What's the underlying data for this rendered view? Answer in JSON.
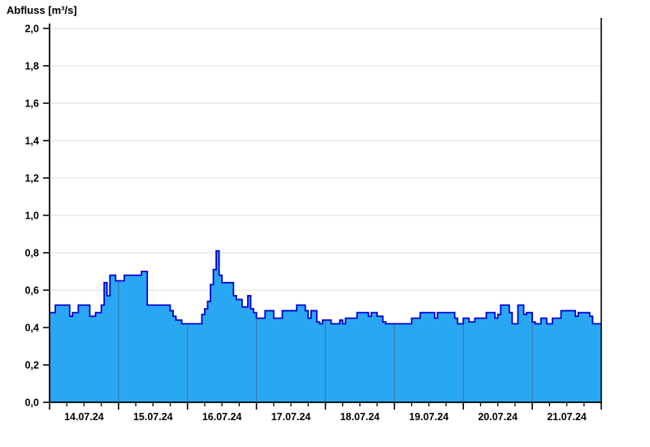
{
  "chart_data": {
    "type": "area",
    "title": "Abfluss [m³/s]",
    "ylabel": "Abfluss [m³/s]",
    "xlabel": "",
    "ylim": [
      0.0,
      2.0
    ],
    "y_tick_step": 0.2,
    "y_tick_labels": [
      "0,0",
      "0,2",
      "0,4",
      "0,6",
      "0,8",
      "1,0",
      "1,2",
      "1,4",
      "1,6",
      "1,8",
      "2,0"
    ],
    "x_tick_labels": [
      "14.07.24",
      "15.07.24",
      "16.07.24",
      "17.07.24",
      "18.07.24",
      "19.07.24",
      "20.07.24",
      "21.07.24"
    ],
    "x_days": 8,
    "x_minor_tick_hours": 6,
    "grid": "horizontal-light, day-separators-inside-fill",
    "legend": "none",
    "x_unit": "hourly samples starting 14.07.24 00:00, step-after interpolation",
    "values_hourly": [
      0.48,
      0.48,
      0.52,
      0.52,
      0.52,
      0.52,
      0.52,
      0.46,
      0.48,
      0.48,
      0.52,
      0.52,
      0.52,
      0.52,
      0.46,
      0.46,
      0.48,
      0.48,
      0.52,
      0.64,
      0.57,
      0.68,
      0.68,
      0.65,
      0.65,
      0.65,
      0.68,
      0.68,
      0.68,
      0.68,
      0.68,
      0.68,
      0.7,
      0.7,
      0.52,
      0.52,
      0.52,
      0.52,
      0.52,
      0.52,
      0.52,
      0.52,
      0.49,
      0.46,
      0.44,
      0.44,
      0.42,
      0.42,
      0.42,
      0.42,
      0.42,
      0.42,
      0.42,
      0.47,
      0.5,
      0.54,
      0.63,
      0.71,
      0.81,
      0.68,
      0.64,
      0.64,
      0.64,
      0.64,
      0.57,
      0.55,
      0.55,
      0.51,
      0.51,
      0.57,
      0.5,
      0.48,
      0.45,
      0.45,
      0.45,
      0.49,
      0.49,
      0.49,
      0.45,
      0.45,
      0.45,
      0.49,
      0.49,
      0.49,
      0.49,
      0.49,
      0.52,
      0.52,
      0.52,
      0.49,
      0.45,
      0.49,
      0.49,
      0.43,
      0.42,
      0.44,
      0.44,
      0.44,
      0.42,
      0.42,
      0.42,
      0.44,
      0.42,
      0.45,
      0.45,
      0.45,
      0.45,
      0.48,
      0.48,
      0.48,
      0.48,
      0.46,
      0.48,
      0.48,
      0.46,
      0.46,
      0.43,
      0.42,
      0.42,
      0.42,
      0.42,
      0.42,
      0.42,
      0.42,
      0.42,
      0.42,
      0.45,
      0.45,
      0.45,
      0.48,
      0.48,
      0.48,
      0.48,
      0.48,
      0.45,
      0.48,
      0.48,
      0.48,
      0.48,
      0.48,
      0.48,
      0.45,
      0.42,
      0.42,
      0.45,
      0.45,
      0.43,
      0.43,
      0.45,
      0.45,
      0.45,
      0.45,
      0.48,
      0.48,
      0.48,
      0.45,
      0.47,
      0.52,
      0.52,
      0.52,
      0.48,
      0.42,
      0.42,
      0.52,
      0.52,
      0.47,
      0.48,
      0.48,
      0.43,
      0.42,
      0.42,
      0.45,
      0.45,
      0.42,
      0.42,
      0.45,
      0.45,
      0.45,
      0.49,
      0.49,
      0.49,
      0.49,
      0.49,
      0.46,
      0.48,
      0.48,
      0.48,
      0.48,
      0.46,
      0.42,
      0.42,
      0.42
    ],
    "colors": {
      "fill": "#2AA7F2",
      "line": "#0000D4",
      "grid": "#E8E8E8",
      "day_separator": "#3E7CAD",
      "axis": "#000000",
      "background": "#FFFFFF"
    }
  }
}
